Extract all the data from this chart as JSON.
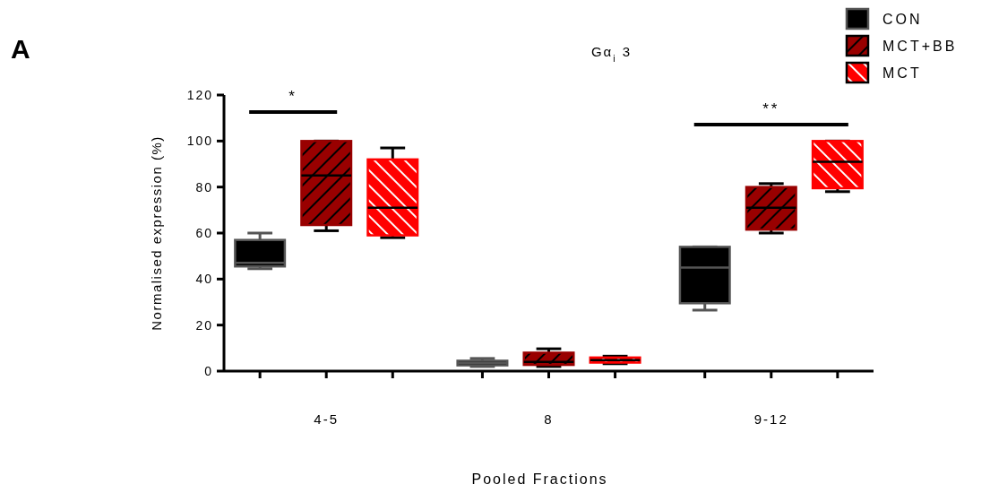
{
  "chart_data": {
    "type": "box",
    "title": "Gα$_{i}$ 3",
    "xlabel": "Pooled Fractions",
    "ylabel": "Normalised expression (%)",
    "categories": [
      "4-5",
      "8",
      "9-12"
    ],
    "series": [
      {
        "name": "CON",
        "color": "#000000",
        "boxes": [
          {
            "low": 44.5,
            "q1": 45.5,
            "median": 47,
            "q3": 57,
            "high": 60
          },
          {
            "low": 2,
            "q1": 2.5,
            "median": 3.5,
            "q3": 4.5,
            "high": 5.5
          },
          {
            "low": 26.5,
            "q1": 29.5,
            "median": 45,
            "q3": 54,
            "high": 54
          }
        ]
      },
      {
        "name": "MCT+BB",
        "color": "#990000",
        "boxes": [
          {
            "low": 61,
            "q1": 63.5,
            "median": 85,
            "q3": 100,
            "high": 100
          },
          {
            "low": 2,
            "q1": 2.7,
            "median": 4,
            "q3": 8,
            "high": 9.7
          },
          {
            "low": 60,
            "q1": 61.5,
            "median": 71,
            "q3": 80,
            "high": 81.5
          }
        ]
      },
      {
        "name": "MCT",
        "color": "#ff0000",
        "boxes": [
          {
            "low": 58,
            "q1": 59,
            "median": 71,
            "q3": 92,
            "high": 97
          },
          {
            "low": 3.2,
            "q1": 3.7,
            "median": 4.8,
            "q3": 5.9,
            "high": 6.5
          },
          {
            "low": 78,
            "q1": 79.5,
            "median": 91,
            "q3": 100,
            "high": 100
          }
        ]
      }
    ],
    "ylim": [
      0,
      120
    ],
    "yticks": [
      0,
      20,
      40,
      60,
      80,
      100,
      120
    ],
    "grid": false,
    "legend": "top right",
    "annotations": [
      "A",
      "*",
      "**"
    ]
  }
}
